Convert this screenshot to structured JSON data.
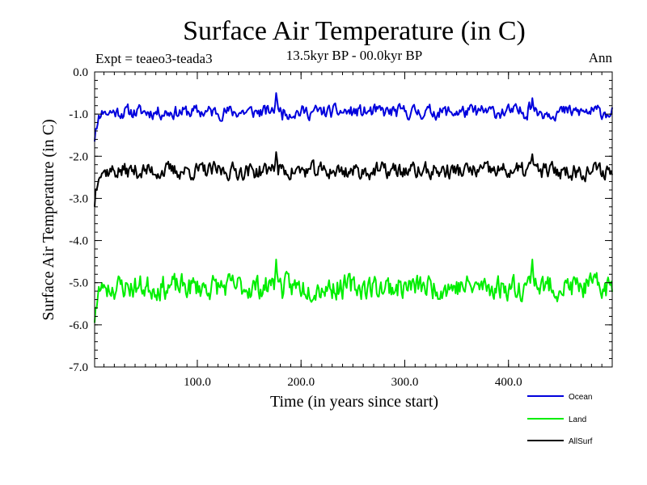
{
  "chart_data": {
    "type": "line",
    "title": "Surface Air Temperature (in C)",
    "subtitle": "13.5kyr BP - 00.0kyr BP",
    "experiment_label": "Expt = teaeo3-teada3",
    "season_label": "Ann",
    "xlabel": "Time (in years since start)",
    "ylabel": "Surface Air Temperature (in C)",
    "xlim": [
      1,
      500
    ],
    "ylim": [
      -7.0,
      0.0
    ],
    "xticks": [
      100,
      200,
      300,
      400
    ],
    "xtick_labels": [
      "100.0",
      "200.0",
      "300.0",
      "400.0"
    ],
    "yticks": [
      0,
      -1,
      -2,
      -3,
      -4,
      -5,
      -6,
      -7
    ],
    "ytick_labels": [
      "0.0",
      "-1.0",
      "-2.0",
      "-3.0",
      "-4.0",
      "-5.0",
      "-6.0",
      "-7.0"
    ],
    "x_minor_step": 10,
    "y_minor_step": 0.2,
    "legend_position": "bottom-right, below plot",
    "series": [
      {
        "name": "Ocean",
        "color": "#0000dd",
        "mean": -0.95,
        "amplitude": 0.14,
        "seed": 11,
        "anchors": [
          [
            1,
            -1.65
          ],
          [
            3,
            -1.35
          ],
          [
            6,
            -1.1
          ],
          [
            10,
            -0.95
          ],
          [
            172,
            -0.85
          ],
          [
            176,
            -0.5
          ],
          [
            180,
            -0.85
          ],
          [
            420,
            -0.72
          ],
          [
            423,
            -0.62
          ],
          [
            426,
            -0.85
          ]
        ]
      },
      {
        "name": "Land",
        "color": "#00ee00",
        "mean": -5.1,
        "amplitude": 0.25,
        "seed": 23,
        "anchors": [
          [
            1,
            -5.95
          ],
          [
            3,
            -5.6
          ],
          [
            6,
            -5.2
          ],
          [
            10,
            -5.05
          ],
          [
            172,
            -4.9
          ],
          [
            176,
            -4.45
          ],
          [
            180,
            -4.9
          ],
          [
            420,
            -4.85
          ],
          [
            423,
            -4.45
          ],
          [
            426,
            -4.9
          ]
        ]
      },
      {
        "name": "AllSurf",
        "color": "#000000",
        "mean": -2.35,
        "amplitude": 0.17,
        "seed": 37,
        "anchors": [
          [
            1,
            -3.2
          ],
          [
            3,
            -2.8
          ],
          [
            6,
            -2.5
          ],
          [
            10,
            -2.35
          ],
          [
            172,
            -2.2
          ],
          [
            176,
            -1.9
          ],
          [
            180,
            -2.2
          ],
          [
            420,
            -2.15
          ],
          [
            423,
            -1.95
          ],
          [
            426,
            -2.2
          ]
        ]
      }
    ]
  }
}
